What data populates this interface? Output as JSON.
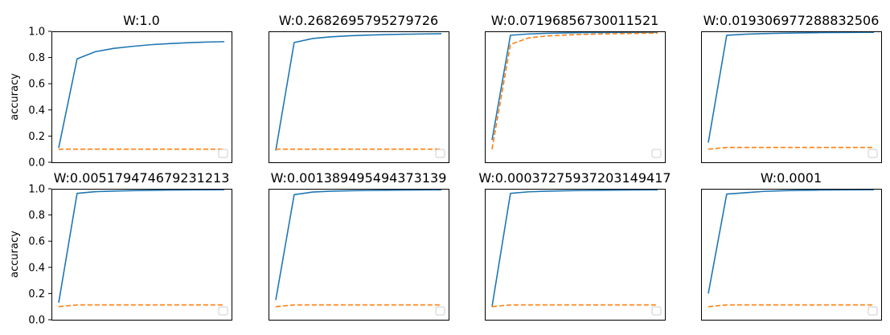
{
  "figure": {
    "colors": {
      "train": "#1f77b4",
      "test": "#ff7f0e",
      "axes": "#000000",
      "background": "#ffffff"
    }
  },
  "chart_data": [
    {
      "type": "line",
      "title": "W:1.0",
      "xlabel": "",
      "ylabel": "accuracy",
      "ylim": [
        0,
        1.0
      ],
      "yticks": [
        "0.0",
        "0.2",
        "0.4",
        "0.6",
        "0.8",
        "1.0"
      ],
      "x": [
        0,
        1,
        2,
        3,
        4,
        5,
        6,
        7,
        8,
        9
      ],
      "series": [
        {
          "values": [
            0.11,
            0.79,
            0.845,
            0.87,
            0.885,
            0.898,
            0.906,
            0.913,
            0.918,
            0.921
          ],
          "color": "#1f77b4",
          "style": "solid"
        },
        {
          "values": [
            0.1,
            0.1,
            0.1,
            0.1,
            0.1,
            0.1,
            0.1,
            0.1,
            0.1,
            0.1
          ],
          "color": "#ff7f0e",
          "style": "dashed"
        }
      ],
      "legend": "lower-right",
      "grid": false
    },
    {
      "type": "line",
      "title": "W:0.2682695795279726",
      "xlabel": "",
      "ylabel": "",
      "ylim": [
        0,
        1.0
      ],
      "yticks": [],
      "x": [
        0,
        1,
        2,
        3,
        4,
        5,
        6,
        7,
        8,
        9
      ],
      "series": [
        {
          "values": [
            0.09,
            0.915,
            0.945,
            0.958,
            0.966,
            0.971,
            0.975,
            0.978,
            0.98,
            0.982
          ],
          "color": "#1f77b4",
          "style": "solid"
        },
        {
          "values": [
            0.1,
            0.1,
            0.1,
            0.1,
            0.1,
            0.1,
            0.1,
            0.1,
            0.1,
            0.1
          ],
          "color": "#ff7f0e",
          "style": "dashed"
        }
      ],
      "legend": "lower-right",
      "grid": false
    },
    {
      "type": "line",
      "title": "W:0.07196856730011521",
      "xlabel": "",
      "ylabel": "",
      "ylim": [
        0,
        1.0
      ],
      "yticks": [],
      "x": [
        0,
        1,
        2,
        3,
        4,
        5,
        6,
        7,
        8,
        9
      ],
      "series": [
        {
          "values": [
            0.17,
            0.97,
            0.98,
            0.985,
            0.988,
            0.99,
            0.991,
            0.992,
            0.993,
            0.994
          ],
          "color": "#1f77b4",
          "style": "solid"
        },
        {
          "values": [
            0.1,
            0.9,
            0.95,
            0.965,
            0.972,
            0.977,
            0.98,
            0.983,
            0.985,
            0.987
          ],
          "color": "#ff7f0e",
          "style": "dashed"
        }
      ],
      "legend": "lower-right",
      "grid": false
    },
    {
      "type": "line",
      "title": "W:0.019306977288832506",
      "xlabel": "",
      "ylabel": "",
      "ylim": [
        0,
        1.0
      ],
      "yticks": [],
      "x": [
        0,
        1,
        2,
        3,
        4,
        5,
        6,
        7,
        8,
        9
      ],
      "series": [
        {
          "values": [
            0.15,
            0.97,
            0.978,
            0.983,
            0.986,
            0.988,
            0.99,
            0.991,
            0.992,
            0.993
          ],
          "color": "#1f77b4",
          "style": "solid"
        },
        {
          "values": [
            0.1,
            0.113,
            0.113,
            0.113,
            0.113,
            0.113,
            0.113,
            0.113,
            0.113,
            0.113
          ],
          "color": "#ff7f0e",
          "style": "dashed"
        }
      ],
      "legend": "lower-right",
      "grid": false
    },
    {
      "type": "line",
      "title": "W:0.005179474679231213",
      "xlabel": "",
      "ylabel": "accuracy",
      "ylim": [
        0,
        1.0
      ],
      "yticks": [
        "0.0",
        "0.2",
        "0.4",
        "0.6",
        "0.8",
        "1.0"
      ],
      "x": [
        0,
        1,
        2,
        3,
        4,
        5,
        6,
        7,
        8,
        9
      ],
      "series": [
        {
          "values": [
            0.13,
            0.965,
            0.978,
            0.983,
            0.986,
            0.988,
            0.99,
            0.991,
            0.992,
            0.993
          ],
          "color": "#1f77b4",
          "style": "solid"
        },
        {
          "values": [
            0.1,
            0.113,
            0.113,
            0.113,
            0.113,
            0.113,
            0.113,
            0.113,
            0.113,
            0.113
          ],
          "color": "#ff7f0e",
          "style": "dashed"
        }
      ],
      "legend": "lower-right",
      "grid": false
    },
    {
      "type": "line",
      "title": "W:0.001389495494373139",
      "xlabel": "",
      "ylabel": "",
      "ylim": [
        0,
        1.0
      ],
      "yticks": [],
      "x": [
        0,
        1,
        2,
        3,
        4,
        5,
        6,
        7,
        8,
        9
      ],
      "series": [
        {
          "values": [
            0.15,
            0.955,
            0.975,
            0.982,
            0.985,
            0.987,
            0.989,
            0.99,
            0.991,
            0.992
          ],
          "color": "#1f77b4",
          "style": "solid"
        },
        {
          "values": [
            0.1,
            0.113,
            0.113,
            0.113,
            0.113,
            0.113,
            0.113,
            0.113,
            0.113,
            0.113
          ],
          "color": "#ff7f0e",
          "style": "dashed"
        }
      ],
      "legend": "lower-right",
      "grid": false
    },
    {
      "type": "line",
      "title": "W:0.0003727593720314941 7",
      "xlabel": "",
      "ylabel": "",
      "ylim": [
        0,
        1.0
      ],
      "yticks": [],
      "x": [
        0,
        1,
        2,
        3,
        4,
        5,
        6,
        7,
        8,
        9
      ],
      "series": [
        {
          "values": [
            0.1,
            0.965,
            0.977,
            0.982,
            0.985,
            0.987,
            0.989,
            0.99,
            0.991,
            0.992
          ],
          "color": "#1f77b4",
          "style": "solid"
        },
        {
          "values": [
            0.1,
            0.113,
            0.113,
            0.113,
            0.113,
            0.113,
            0.113,
            0.113,
            0.113,
            0.113
          ],
          "color": "#ff7f0e",
          "style": "dashed"
        }
      ],
      "legend": "lower-right",
      "grid": false
    },
    {
      "type": "line",
      "title": "W:0.0001",
      "xlabel": "",
      "ylabel": "",
      "ylim": [
        0,
        1.0
      ],
      "yticks": [],
      "x": [
        0,
        1,
        2,
        3,
        4,
        5,
        6,
        7,
        8,
        9
      ],
      "series": [
        {
          "values": [
            0.2,
            0.96,
            0.97,
            0.98,
            0.985,
            0.988,
            0.99,
            0.991,
            0.992,
            0.993
          ],
          "color": "#1f77b4",
          "style": "solid"
        },
        {
          "values": [
            0.1,
            0.113,
            0.113,
            0.113,
            0.113,
            0.113,
            0.113,
            0.113,
            0.113,
            0.113
          ],
          "color": "#ff7f0e",
          "style": "dashed"
        }
      ],
      "legend": "lower-right",
      "grid": false
    }
  ]
}
